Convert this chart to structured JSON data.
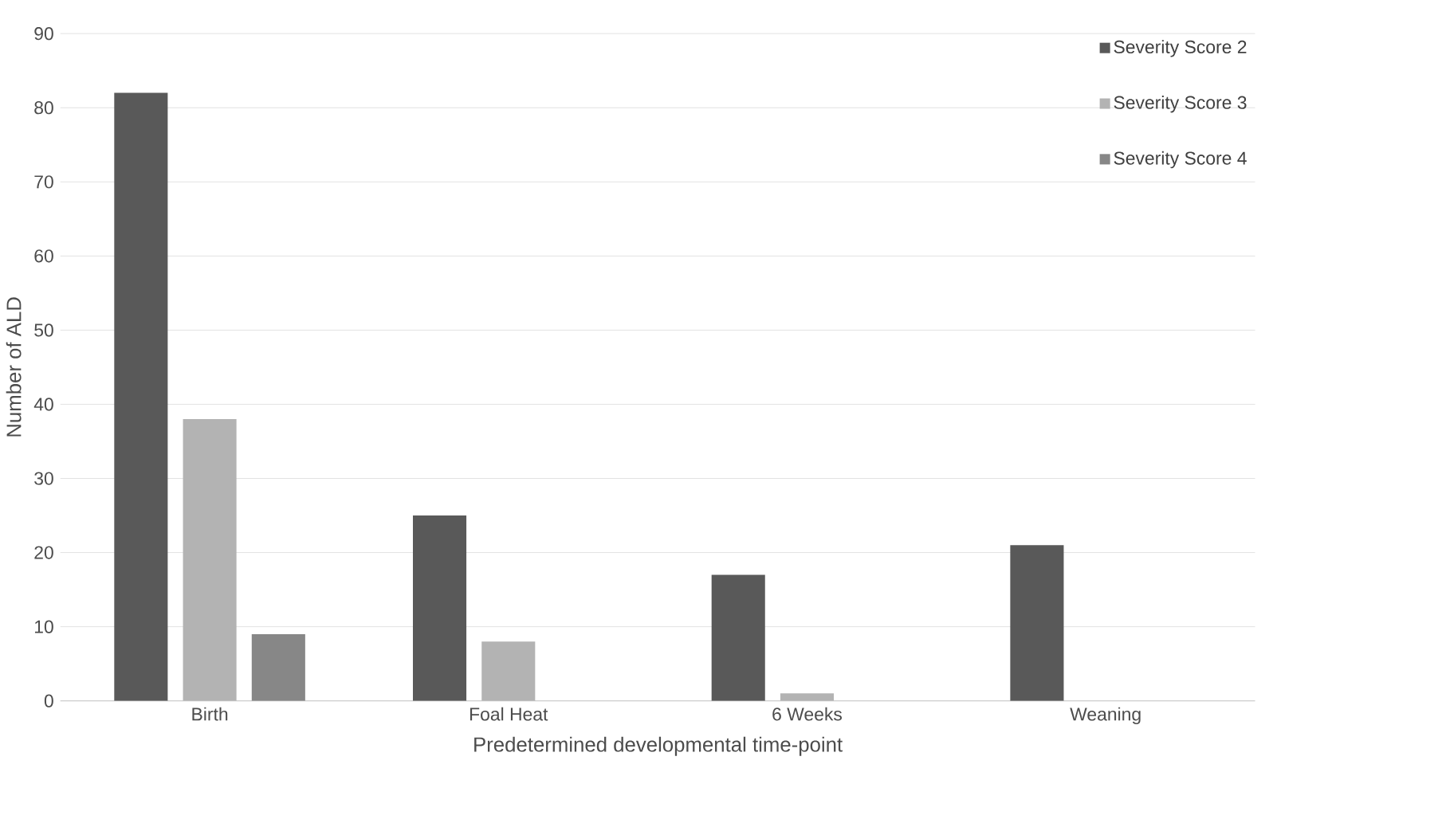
{
  "chart_data": {
    "type": "bar",
    "xlabel": "Predetermined developmental time-point",
    "ylabel": "Number of ALD",
    "categories": [
      "Birth",
      "Foal Heat",
      "6 Weeks",
      "Weaning"
    ],
    "series": [
      {
        "name": "Severity Score 2",
        "color": "#595959",
        "values": [
          82,
          25,
          17,
          21
        ]
      },
      {
        "name": "Severity Score 3",
        "color": "#b3b3b3",
        "values": [
          38,
          8,
          1,
          0
        ]
      },
      {
        "name": "Severity Score 4",
        "color": "#878787",
        "values": [
          9,
          0,
          0,
          0
        ]
      }
    ],
    "ylim": [
      0,
      90
    ],
    "yticks": [
      0,
      10,
      20,
      30,
      40,
      50,
      60,
      70,
      80,
      90
    ],
    "grid": "y",
    "legend": "top right"
  }
}
